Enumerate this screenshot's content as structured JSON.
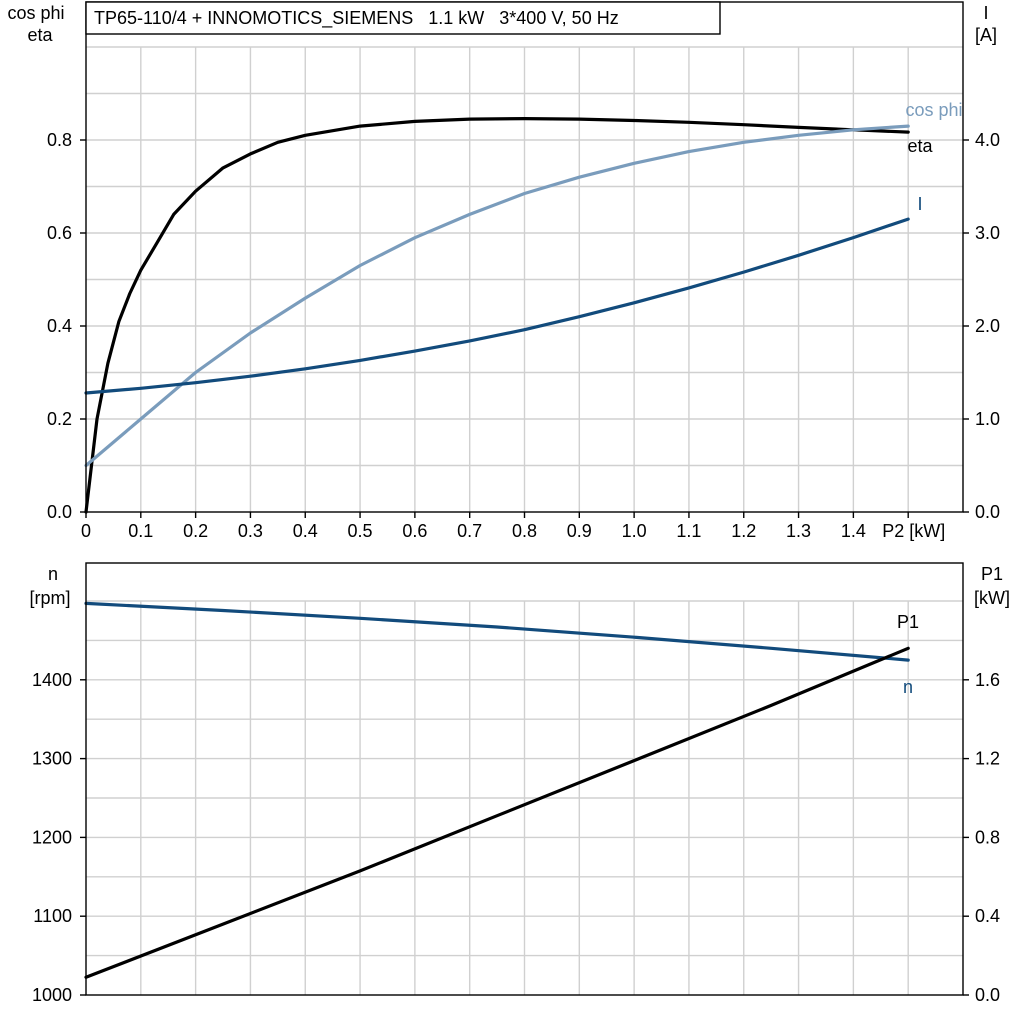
{
  "chart_data": [
    {
      "type": "line",
      "title": "TP65-110/4 + INNOMOTICS_SIEMENS   1.1 kW   3*400 V, 50 Hz",
      "left_axis_label": [
        "cos phi",
        "eta"
      ],
      "right_axis_label": [
        "I",
        "[A]"
      ],
      "xlabel": "P2 [kW]",
      "xlim": [
        0,
        1.6
      ],
      "ylim_left": [
        0,
        1.0
      ],
      "ylim_right": [
        0,
        5.0
      ],
      "x_ticks": [
        "0",
        "0.1",
        "0.2",
        "0.3",
        "0.4",
        "0.5",
        "0.6",
        "0.7",
        "0.8",
        "0.9",
        "1.0",
        "1.1",
        "1.2",
        "1.3",
        "1.4",
        "P2 [kW]"
      ],
      "y_ticks_left": [
        "0.0",
        "0.2",
        "0.4",
        "0.6",
        "0.8"
      ],
      "y_ticks_right": [
        "0.0",
        "1.0",
        "2.0",
        "3.0",
        "4.0"
      ],
      "grid": true,
      "series": [
        {
          "name": "eta",
          "axis": "left",
          "color": "#000000",
          "x": [
            0,
            0.02,
            0.04,
            0.06,
            0.08,
            0.1,
            0.13,
            0.16,
            0.2,
            0.25,
            0.3,
            0.35,
            0.4,
            0.5,
            0.6,
            0.7,
            0.8,
            0.9,
            1.0,
            1.1,
            1.2,
            1.3,
            1.4,
            1.5
          ],
          "y": [
            0.0,
            0.2,
            0.32,
            0.41,
            0.47,
            0.52,
            0.58,
            0.64,
            0.69,
            0.74,
            0.77,
            0.795,
            0.81,
            0.83,
            0.84,
            0.845,
            0.846,
            0.845,
            0.842,
            0.838,
            0.833,
            0.827,
            0.822,
            0.817
          ]
        },
        {
          "name": "cos phi",
          "axis": "left",
          "color": "#7a9cbc",
          "x": [
            0,
            0.1,
            0.2,
            0.3,
            0.4,
            0.5,
            0.6,
            0.7,
            0.8,
            0.9,
            1.0,
            1.1,
            1.2,
            1.3,
            1.4,
            1.5
          ],
          "y": [
            0.1,
            0.2,
            0.3,
            0.385,
            0.46,
            0.53,
            0.59,
            0.64,
            0.685,
            0.72,
            0.75,
            0.775,
            0.795,
            0.81,
            0.822,
            0.83
          ]
        },
        {
          "name": "I",
          "axis": "right",
          "color": "#124b7c",
          "x": [
            0,
            0.1,
            0.2,
            0.3,
            0.4,
            0.5,
            0.6,
            0.7,
            0.8,
            0.9,
            1.0,
            1.1,
            1.2,
            1.3,
            1.4,
            1.5
          ],
          "y": [
            1.28,
            1.33,
            1.39,
            1.46,
            1.54,
            1.63,
            1.73,
            1.84,
            1.96,
            2.1,
            2.25,
            2.41,
            2.58,
            2.76,
            2.95,
            3.15
          ]
        }
      ]
    },
    {
      "type": "line",
      "left_axis_label": [
        "n",
        "[rpm]"
      ],
      "right_axis_label": [
        "P1",
        "[kW]"
      ],
      "xlim": [
        0,
        1.6
      ],
      "ylim_left": [
        1000,
        1500
      ],
      "ylim_right": [
        0,
        2.0
      ],
      "y_ticks_left": [
        "1000",
        "1100",
        "1200",
        "1300",
        "1400"
      ],
      "y_ticks_right": [
        "0.0",
        "0.4",
        "0.8",
        "1.2",
        "1.6"
      ],
      "grid": true,
      "series": [
        {
          "name": "n",
          "axis": "left",
          "color": "#124b7c",
          "x": [
            0,
            0.25,
            0.5,
            0.75,
            1.0,
            1.25,
            1.5
          ],
          "y": [
            1497,
            1488,
            1478,
            1467,
            1454,
            1440,
            1425
          ]
        },
        {
          "name": "P1",
          "axis": "right",
          "color": "#000000",
          "x": [
            0,
            0.25,
            0.5,
            0.75,
            1.0,
            1.25,
            1.5
          ],
          "y": [
            0.09,
            0.36,
            0.63,
            0.91,
            1.19,
            1.47,
            1.76
          ]
        }
      ]
    }
  ]
}
